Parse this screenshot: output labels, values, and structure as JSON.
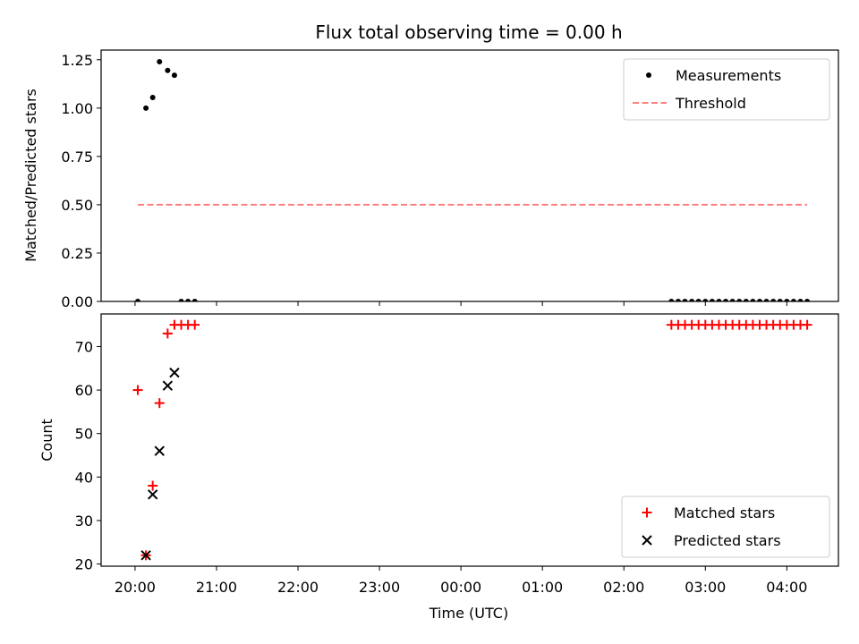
{
  "chart_data": [
    {
      "type": "scatter",
      "title": "Flux total observing time = 0.00 h",
      "xlabel": "",
      "ylabel": "Matched/Predicted stars",
      "ylim": [
        0,
        1.3
      ],
      "yticks": [
        "0.00",
        "0.25",
        "0.50",
        "0.75",
        "1.00",
        "1.25"
      ],
      "ytick_values": [
        0,
        0.25,
        0.5,
        0.75,
        1.0,
        1.25
      ],
      "legend_position": "upper right",
      "series": [
        {
          "name": "Measurements",
          "kind": "scatter",
          "marker": "dot",
          "color": "#000000",
          "points": [
            [
              "20:02",
              0
            ],
            [
              "20:08",
              1.0
            ],
            [
              "20:13",
              1.055
            ],
            [
              "20:18",
              1.24
            ],
            [
              "20:24",
              1.195
            ],
            [
              "20:29",
              1.17
            ],
            [
              "20:34",
              0
            ],
            [
              "20:39",
              0
            ],
            [
              "20:44",
              0
            ],
            [
              "02:35",
              0
            ],
            [
              "02:40",
              0
            ],
            [
              "02:45",
              0
            ],
            [
              "02:50",
              0
            ],
            [
              "02:55",
              0
            ],
            [
              "03:00",
              0
            ],
            [
              "03:05",
              0
            ],
            [
              "03:10",
              0
            ],
            [
              "03:15",
              0
            ],
            [
              "03:20",
              0
            ],
            [
              "03:25",
              0
            ],
            [
              "03:30",
              0
            ],
            [
              "03:35",
              0
            ],
            [
              "03:40",
              0
            ],
            [
              "03:45",
              0
            ],
            [
              "03:50",
              0
            ],
            [
              "03:55",
              0
            ],
            [
              "04:00",
              0
            ],
            [
              "04:05",
              0
            ],
            [
              "04:10",
              0
            ],
            [
              "04:15",
              0
            ]
          ]
        },
        {
          "name": "Threshold",
          "kind": "line",
          "style": "dashed",
          "color": "#ff7f7f",
          "points": [
            [
              "20:02",
              0.5
            ],
            [
              "04:15",
              0.5
            ]
          ]
        }
      ]
    },
    {
      "type": "scatter",
      "title": "",
      "xlabel": "Time (UTC)",
      "ylabel": "Count",
      "ylim": [
        19.5,
        77.5
      ],
      "yticks": [
        "20",
        "30",
        "40",
        "50",
        "60",
        "70"
      ],
      "ytick_values": [
        20,
        30,
        40,
        50,
        60,
        70
      ],
      "xticks": [
        "20:00",
        "21:00",
        "22:00",
        "23:00",
        "00:00",
        "01:00",
        "02:00",
        "03:00",
        "04:00"
      ],
      "legend_position": "lower right",
      "series": [
        {
          "name": "Matched stars",
          "kind": "scatter",
          "marker": "plus",
          "color": "#ff0000",
          "points": [
            [
              "20:02",
              60
            ],
            [
              "20:08",
              22
            ],
            [
              "20:13",
              38
            ],
            [
              "20:18",
              57
            ],
            [
              "20:24",
              73
            ],
            [
              "20:29",
              75
            ],
            [
              "20:34",
              75
            ],
            [
              "20:39",
              75
            ],
            [
              "20:44",
              75
            ],
            [
              "02:35",
              75
            ],
            [
              "02:40",
              75
            ],
            [
              "02:45",
              75
            ],
            [
              "02:50",
              75
            ],
            [
              "02:55",
              75
            ],
            [
              "03:00",
              75
            ],
            [
              "03:05",
              75
            ],
            [
              "03:10",
              75
            ],
            [
              "03:15",
              75
            ],
            [
              "03:20",
              75
            ],
            [
              "03:25",
              75
            ],
            [
              "03:30",
              75
            ],
            [
              "03:35",
              75
            ],
            [
              "03:40",
              75
            ],
            [
              "03:45",
              75
            ],
            [
              "03:50",
              75
            ],
            [
              "03:55",
              75
            ],
            [
              "04:00",
              75
            ],
            [
              "04:05",
              75
            ],
            [
              "04:10",
              75
            ],
            [
              "04:15",
              75
            ]
          ]
        },
        {
          "name": "Predicted stars",
          "kind": "scatter",
          "marker": "x",
          "color": "#000000",
          "points": [
            [
              "20:08",
              22
            ],
            [
              "20:13",
              36
            ],
            [
              "20:18",
              46
            ],
            [
              "20:24",
              61
            ],
            [
              "20:29",
              64
            ]
          ]
        }
      ]
    }
  ]
}
